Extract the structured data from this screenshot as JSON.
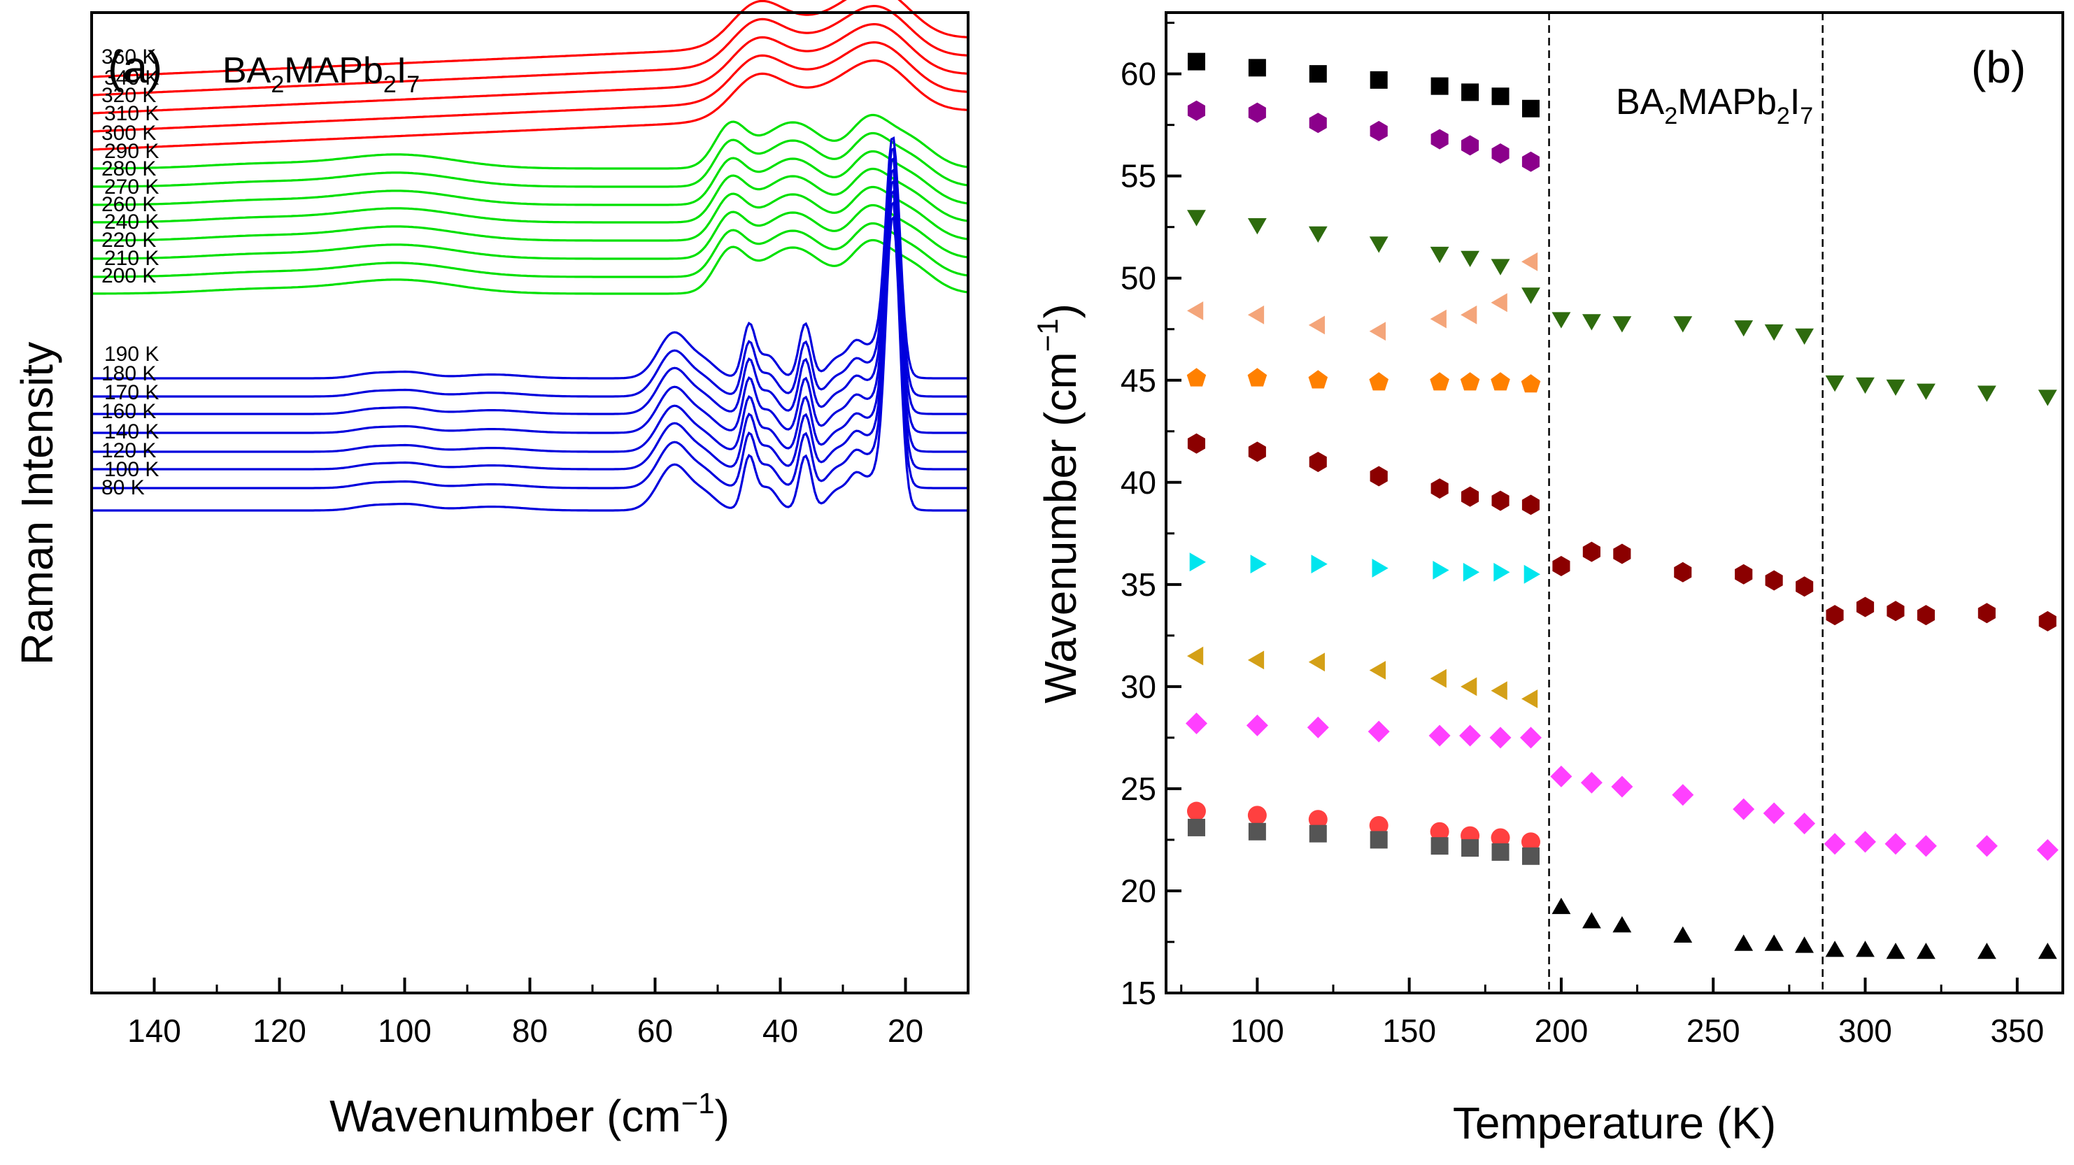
{
  "chart_data": [
    {
      "panel": "(a)",
      "type": "line",
      "formula": {
        "base": "BA",
        "s1": "2",
        "mid": "MAPb",
        "s2": "2",
        "end": "I",
        "s3": "7"
      },
      "xlabel": {
        "main": "Wavenumber (cm",
        "sup": "−1",
        "close": ")"
      },
      "ylabel": "Raman Intensity",
      "xlim": [
        150,
        10
      ],
      "xticks": [
        "140",
        "120",
        "100",
        "80",
        "60",
        "40",
        "20"
      ],
      "xtick_values": [
        140,
        120,
        100,
        80,
        60,
        40,
        20
      ],
      "series_colors": {
        "high": "#ff0000",
        "mid": "#00e000",
        "low": "#0000dd"
      },
      "temperature_labels": [
        "360 K",
        "340 K",
        "320 K",
        "310 K",
        "300 K",
        "290 K",
        "280 K",
        "270 K",
        "260 K",
        "240 K",
        "220 K",
        "210 K",
        "200 K",
        "190 K",
        "180 K",
        "170 K",
        "160 K",
        "140 K",
        "120 K",
        "100 K",
        "80 K"
      ]
    },
    {
      "panel": "(b)",
      "type": "scatter",
      "formula": {
        "base": "BA",
        "s1": "2",
        "mid": "MAPb",
        "s2": "2",
        "end": "I",
        "s3": "7"
      },
      "xlabel": "Temperature (K)",
      "ylabel": {
        "main": "Wavenumber (cm",
        "sup": "−1",
        "close": ")"
      },
      "xlim": [
        70,
        365
      ],
      "ylim": [
        15,
        63
      ],
      "xticks": [
        "100",
        "150",
        "200",
        "250",
        "300",
        "350"
      ],
      "xtick_values": [
        100,
        150,
        200,
        250,
        300,
        350
      ],
      "yticks": [
        "15",
        "20",
        "25",
        "30",
        "35",
        "40",
        "45",
        "50",
        "55",
        "60"
      ],
      "ytick_values": [
        15,
        20,
        25,
        30,
        35,
        40,
        45,
        50,
        55,
        60
      ],
      "phase_boundaries": [
        196,
        286
      ],
      "series": [
        {
          "name": "mode-60",
          "marker": "square",
          "color": "#000000",
          "x": [
            80,
            100,
            120,
            140,
            160,
            170,
            180,
            190
          ],
          "y": [
            60.6,
            60.3,
            60.0,
            59.7,
            59.4,
            59.1,
            58.9,
            58.3
          ]
        },
        {
          "name": "mode-58",
          "marker": "hexagon",
          "color": "#8b008b",
          "x": [
            80,
            100,
            120,
            140,
            160,
            170,
            180,
            190
          ],
          "y": [
            58.2,
            58.1,
            57.6,
            57.2,
            56.8,
            56.5,
            56.1,
            55.7
          ]
        },
        {
          "name": "mode-53",
          "marker": "tri-down",
          "color": "#2e6b0e",
          "x": [
            80,
            100,
            120,
            140,
            160,
            170,
            180,
            190,
            200,
            210,
            220,
            240,
            260,
            270,
            280,
            290,
            300,
            310,
            320,
            340,
            360
          ],
          "y": [
            53.0,
            52.6,
            52.2,
            51.7,
            51.2,
            51.0,
            50.6,
            49.2,
            48.0,
            47.9,
            47.8,
            47.8,
            47.6,
            47.4,
            47.2,
            44.9,
            44.8,
            44.7,
            44.5,
            44.4,
            44.2
          ]
        },
        {
          "name": "mode-48",
          "marker": "tri-left",
          "color": "#f4a57a",
          "x": [
            80,
            100,
            120,
            140,
            160,
            170,
            180,
            190
          ],
          "y": [
            48.4,
            48.2,
            47.7,
            47.4,
            48.0,
            48.2,
            48.8,
            50.8
          ]
        },
        {
          "name": "mode-45",
          "marker": "pentagon",
          "color": "#ff8000",
          "x": [
            80,
            100,
            120,
            140,
            160,
            170,
            180,
            190
          ],
          "y": [
            45.1,
            45.1,
            45.0,
            44.9,
            44.9,
            44.9,
            44.9,
            44.8
          ]
        },
        {
          "name": "mode-42",
          "marker": "hexagon",
          "color": "#8b0000",
          "x": [
            80,
            100,
            120,
            140,
            160,
            170,
            180,
            190,
            200,
            210,
            220,
            240,
            260,
            270,
            280,
            290,
            300,
            310,
            320,
            340,
            360
          ],
          "y": [
            41.9,
            41.5,
            41.0,
            40.3,
            39.7,
            39.3,
            39.1,
            38.9,
            35.9,
            36.6,
            36.5,
            35.6,
            35.5,
            35.2,
            34.9,
            33.5,
            33.9,
            33.7,
            33.5,
            33.6,
            33.2
          ]
        },
        {
          "name": "mode-36",
          "marker": "tri-right",
          "color": "#00e5ee",
          "x": [
            80,
            100,
            120,
            140,
            160,
            170,
            180,
            190
          ],
          "y": [
            36.1,
            36.0,
            36.0,
            35.8,
            35.7,
            35.6,
            35.6,
            35.5
          ]
        },
        {
          "name": "mode-31",
          "marker": "tri-left",
          "color": "#d4a017",
          "x": [
            80,
            100,
            120,
            140,
            160,
            170,
            180,
            190
          ],
          "y": [
            31.5,
            31.3,
            31.2,
            30.8,
            30.4,
            30.0,
            29.8,
            29.4
          ]
        },
        {
          "name": "mode-28",
          "marker": "diamond",
          "color": "#ff40ff",
          "x": [
            80,
            100,
            120,
            140,
            160,
            170,
            180,
            190,
            200,
            210,
            220,
            240,
            260,
            270,
            280,
            290,
            300,
            310,
            320,
            340,
            360
          ],
          "y": [
            28.2,
            28.1,
            28.0,
            27.8,
            27.6,
            27.6,
            27.5,
            27.5,
            25.6,
            25.3,
            25.1,
            24.7,
            24.0,
            23.8,
            23.3,
            22.3,
            22.4,
            22.3,
            22.2,
            22.2,
            22.0
          ]
        },
        {
          "name": "mode-24",
          "marker": "circle",
          "color": "#ff4040",
          "x": [
            80,
            100,
            120,
            140,
            160,
            170,
            180,
            190
          ],
          "y": [
            23.9,
            23.7,
            23.5,
            23.2,
            22.9,
            22.7,
            22.6,
            22.4
          ]
        },
        {
          "name": "mode-23",
          "marker": "square",
          "color": "#555555",
          "x": [
            80,
            100,
            120,
            140,
            160,
            170,
            180,
            190
          ],
          "y": [
            23.1,
            22.9,
            22.8,
            22.5,
            22.2,
            22.1,
            21.9,
            21.7
          ]
        },
        {
          "name": "mode-18",
          "marker": "tri-up",
          "color": "#000000",
          "x": [
            200,
            210,
            220,
            240,
            260,
            270,
            280,
            290,
            300,
            310,
            320,
            340,
            360
          ],
          "y": [
            19.2,
            18.5,
            18.3,
            17.8,
            17.4,
            17.4,
            17.3,
            17.1,
            17.1,
            17.0,
            17.0,
            17.0,
            17.0
          ]
        }
      ]
    }
  ]
}
